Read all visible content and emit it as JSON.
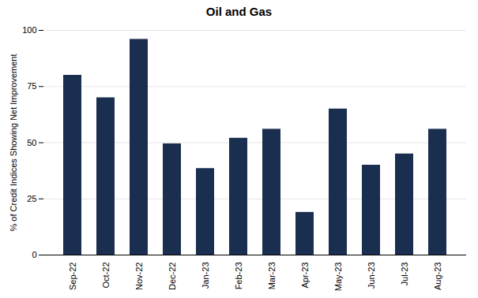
{
  "chart_data": {
    "type": "bar",
    "title": "Oil and Gas",
    "categories": [
      "Sep-22",
      "Oct-22",
      "Nov-22",
      "Dec-22",
      "Jan-23",
      "Feb-23",
      "Mar-23",
      "Apr-23",
      "May-23",
      "Jun-23",
      "Jul-23",
      "Aug-23"
    ],
    "values": [
      80,
      70,
      96,
      49.5,
      38.5,
      52,
      56,
      19,
      65,
      40,
      45,
      56
    ],
    "color": "#1a2e50",
    "ylabel": "% of Credit Indices Showing Net Improvement",
    "ylim": [
      0,
      100
    ],
    "yticks": [
      0,
      25,
      50,
      75,
      100
    ],
    "grid": true
  }
}
